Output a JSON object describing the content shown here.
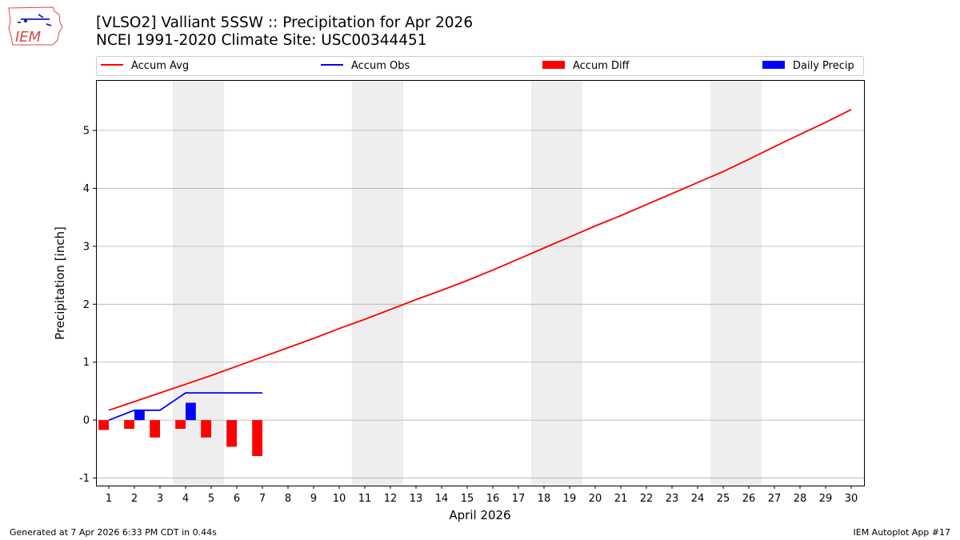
{
  "header": {
    "title_line1": "[VLSO2] Valliant 5SSW :: Precipitation for Apr 2026",
    "title_line2": "NCEI 1991-2020 Climate Site: USC00344451",
    "logo_text": "IEM"
  },
  "footer": {
    "generated": "Generated at 7 Apr 2026 6:33 PM CDT in 0.44s",
    "app": "IEM Autoplot App #17"
  },
  "colors": {
    "avg": "#ff0000",
    "obs": "#0000ff",
    "diff": "#ff0000",
    "daily": "#0000ff",
    "weekend": "#eeeeee",
    "grid": "#b0b0b0"
  },
  "chart_data": {
    "type": "bar",
    "title": "[VLSO2] Valliant 5SSW :: Precipitation for Apr 2026",
    "xlabel": "April 2026",
    "ylabel": "Precipitation [inch]",
    "xlim": [
      0.5,
      30.5
    ],
    "ylim": [
      -1.13,
      5.87
    ],
    "yticks": [
      -1,
      0,
      1,
      2,
      3,
      4,
      5
    ],
    "days": [
      1,
      2,
      3,
      4,
      5,
      6,
      7,
      8,
      9,
      10,
      11,
      12,
      13,
      14,
      15,
      16,
      17,
      18,
      19,
      20,
      21,
      22,
      23,
      24,
      25,
      26,
      27,
      28,
      29,
      30
    ],
    "weekend_days": [
      4,
      5,
      11,
      12,
      18,
      19,
      25,
      26
    ],
    "legend": [
      "Accum Avg",
      "Accum Obs",
      "Accum Diff",
      "Daily Precip"
    ],
    "series": [
      {
        "name": "Accum Avg",
        "kind": "line",
        "x": [
          1,
          2,
          3,
          4,
          5,
          6,
          7,
          8,
          9,
          10,
          11,
          12,
          13,
          14,
          15,
          16,
          17,
          18,
          19,
          20,
          21,
          22,
          23,
          24,
          25,
          26,
          27,
          28,
          29,
          30
        ],
        "values": [
          0.17,
          0.32,
          0.47,
          0.62,
          0.77,
          0.93,
          1.09,
          1.25,
          1.41,
          1.58,
          1.74,
          1.91,
          2.08,
          2.24,
          2.41,
          2.59,
          2.78,
          2.97,
          3.16,
          3.35,
          3.53,
          3.72,
          3.91,
          4.1,
          4.29,
          4.5,
          4.72,
          4.93,
          5.14,
          5.36
        ]
      },
      {
        "name": "Accum Obs",
        "kind": "line",
        "x": [
          1,
          2,
          3,
          4,
          5,
          6,
          7
        ],
        "values": [
          0.0,
          0.17,
          0.17,
          0.47,
          0.47,
          0.47,
          0.47
        ]
      },
      {
        "name": "Accum Diff",
        "kind": "bar",
        "x": [
          1,
          2,
          3,
          4,
          5,
          6,
          7
        ],
        "values": [
          -0.17,
          -0.15,
          -0.3,
          -0.15,
          -0.3,
          -0.46,
          -0.62
        ]
      },
      {
        "name": "Daily Precip",
        "kind": "bar",
        "x": [
          2,
          4
        ],
        "values": [
          0.17,
          0.3
        ]
      }
    ]
  }
}
